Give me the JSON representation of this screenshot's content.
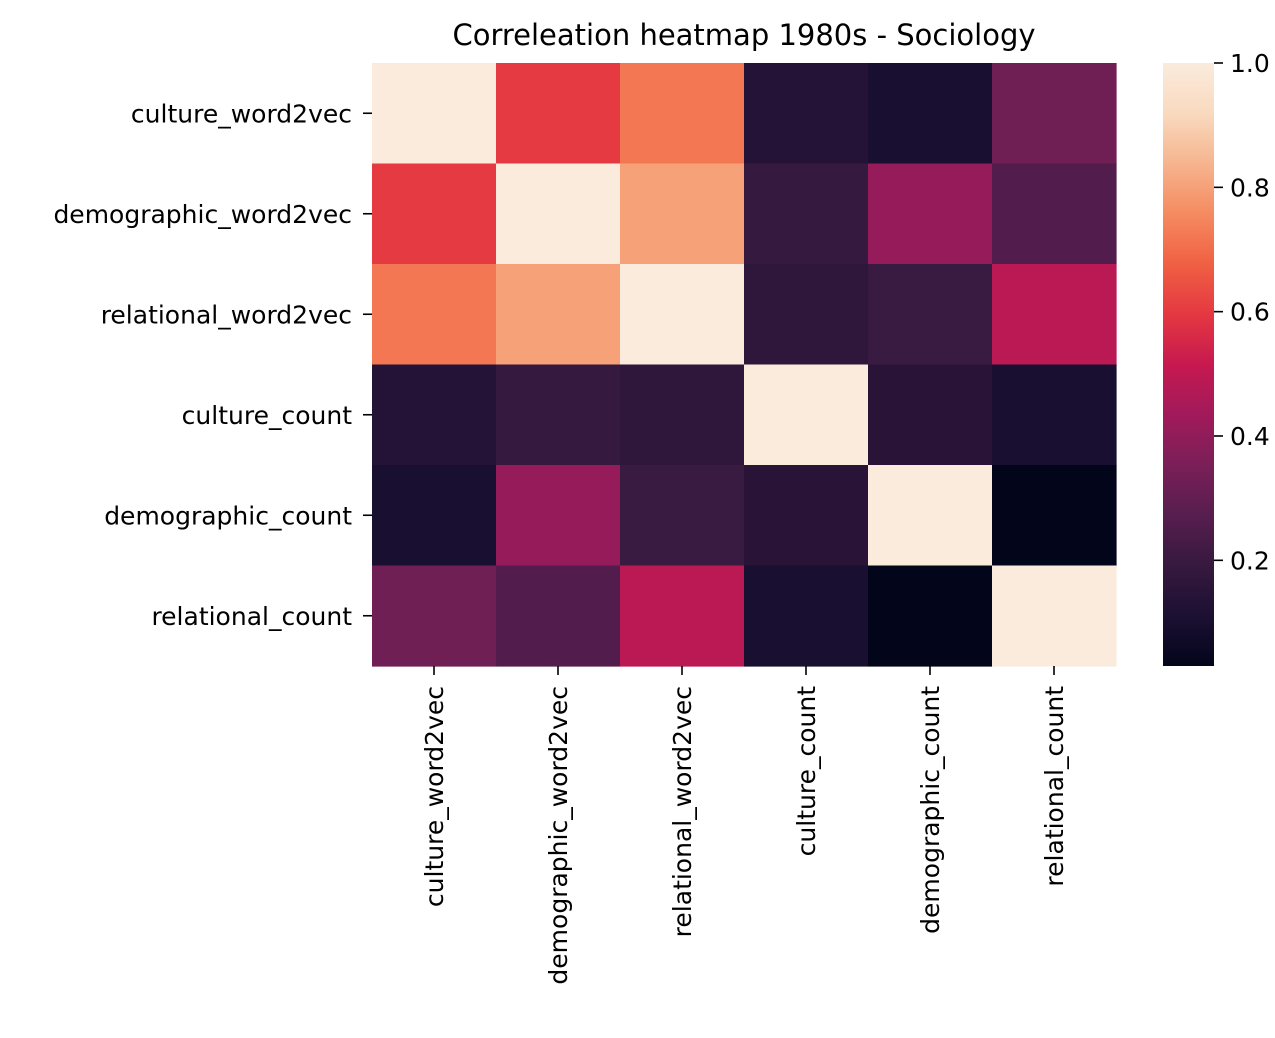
{
  "chart_data": {
    "type": "heatmap",
    "title": "Correleation heatmap 1980s - Sociology",
    "xlabel": "",
    "ylabel": "",
    "rows": [
      "culture_word2vec",
      "demographic_word2vec",
      "relational_word2vec",
      "culture_count",
      "demographic_count",
      "relational_count"
    ],
    "columns": [
      "culture_word2vec",
      "demographic_word2vec",
      "relational_word2vec",
      "culture_count",
      "demographic_count",
      "relational_count"
    ],
    "values": [
      [
        1.0,
        0.6,
        0.72,
        0.14,
        0.1,
        0.33
      ],
      [
        0.6,
        1.0,
        0.8,
        0.19,
        0.41,
        0.26
      ],
      [
        0.72,
        0.8,
        1.0,
        0.17,
        0.2,
        0.49
      ],
      [
        0.14,
        0.19,
        0.17,
        1.0,
        0.15,
        0.1
      ],
      [
        0.1,
        0.41,
        0.2,
        0.15,
        1.0,
        0.03
      ],
      [
        0.33,
        0.26,
        0.49,
        0.1,
        0.03,
        1.0
      ]
    ],
    "colorbar": {
      "min": 0.03,
      "max": 1.0,
      "ticks": [
        0.2,
        0.4,
        0.6,
        0.8,
        1.0
      ],
      "tick_labels": [
        "0.2",
        "0.4",
        "0.6",
        "0.8",
        "1.0"
      ]
    },
    "colormap": "rocket",
    "colormap_stops": [
      "#03051a",
      "#1c1033",
      "#36193e",
      "#571e4f",
      "#7a1f58",
      "#a11a5b",
      "#c7194f",
      "#e43841",
      "#f06043",
      "#f58b60",
      "#f6b48e",
      "#f9dabf",
      "#faebdd"
    ],
    "grid": false,
    "legend": "none"
  }
}
